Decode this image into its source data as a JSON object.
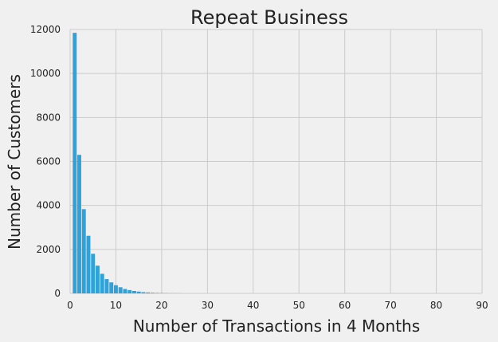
{
  "chart_data": {
    "type": "bar",
    "title": "Repeat Business",
    "xlabel": "Number of Transactions in 4 Months",
    "ylabel": "Number of Customers",
    "xlim": [
      0,
      90
    ],
    "ylim": [
      0,
      12000
    ],
    "xticks": [
      0,
      10,
      20,
      30,
      40,
      50,
      60,
      70,
      80,
      90
    ],
    "yticks": [
      0,
      2000,
      4000,
      6000,
      8000,
      10000,
      12000
    ],
    "grid": true,
    "bar_color": "#30a2da",
    "bin_width": 1,
    "bins": [
      {
        "x": 1,
        "count": 11850
      },
      {
        "x": 2,
        "count": 6300
      },
      {
        "x": 3,
        "count": 3830
      },
      {
        "x": 4,
        "count": 2620
      },
      {
        "x": 5,
        "count": 1800
      },
      {
        "x": 6,
        "count": 1260
      },
      {
        "x": 7,
        "count": 890
      },
      {
        "x": 8,
        "count": 650
      },
      {
        "x": 9,
        "count": 500
      },
      {
        "x": 10,
        "count": 370
      },
      {
        "x": 11,
        "count": 280
      },
      {
        "x": 12,
        "count": 200
      },
      {
        "x": 13,
        "count": 150
      },
      {
        "x": 14,
        "count": 110
      },
      {
        "x": 15,
        "count": 80
      },
      {
        "x": 16,
        "count": 55
      },
      {
        "x": 17,
        "count": 40
      },
      {
        "x": 18,
        "count": 28
      },
      {
        "x": 19,
        "count": 20
      },
      {
        "x": 20,
        "count": 14
      },
      {
        "x": 21,
        "count": 10
      },
      {
        "x": 22,
        "count": 7
      },
      {
        "x": 23,
        "count": 5
      },
      {
        "x": 24,
        "count": 3
      }
    ]
  }
}
